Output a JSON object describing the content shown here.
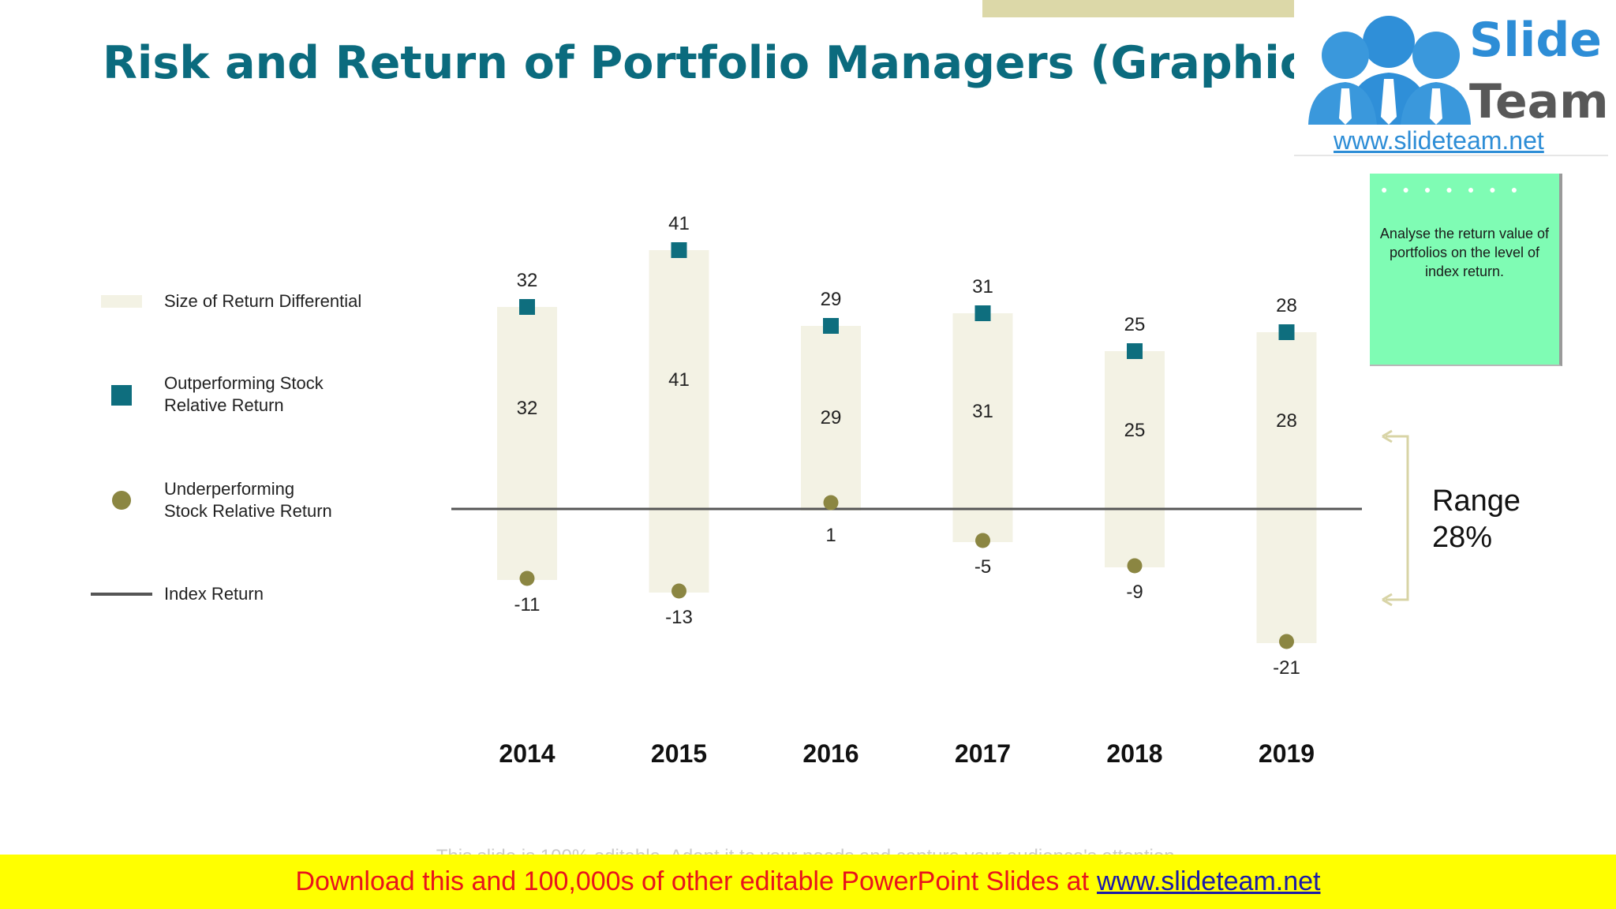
{
  "title": "Risk and Return of Portfolio Managers (Graphical Format)",
  "logo": {
    "line1": "Slide",
    "line2": "Team",
    "url": "www.slideteam.net"
  },
  "legend": {
    "differential": "Size of Return Differential",
    "outperforming_line1": "Outperforming Stock",
    "outperforming_line2": "Relative Return",
    "underperforming_line1": "Underperforming",
    "underperforming_line2": "Stock Relative Return",
    "index": "Index Return"
  },
  "note": {
    "text": "Analyse the return value of portfolios on the level of index return."
  },
  "range": {
    "line1": "Range",
    "line2": "28%"
  },
  "footer": {
    "faint": "This slide is 100% editable. Adapt it to your needs and capture your audience's attention.",
    "text": "Download this and 100,000s of other editable PowerPoint Slides at",
    "link": "www.slideteam.net"
  },
  "colors": {
    "band": "#f3f2e4",
    "outperforming": "#0e6e7e",
    "underperforming": "#8b8642",
    "index_line": "#555555",
    "title": "#0b6b7e"
  },
  "chart_data": {
    "type": "range-bar",
    "categories": [
      "2014",
      "2015",
      "2016",
      "2017",
      "2018",
      "2019"
    ],
    "series": [
      {
        "name": "Outperforming Stock Relative Return",
        "values": [
          32,
          41,
          29,
          31,
          25,
          28
        ]
      },
      {
        "name": "Underperforming Stock Relative Return",
        "values": [
          -11,
          -13,
          1,
          -5,
          -9,
          -21
        ]
      },
      {
        "name": "Size of Return Differential",
        "values": [
          32,
          41,
          29,
          31,
          25,
          28
        ]
      }
    ],
    "index_return": 0,
    "ylim": [
      -23,
      45
    ]
  }
}
